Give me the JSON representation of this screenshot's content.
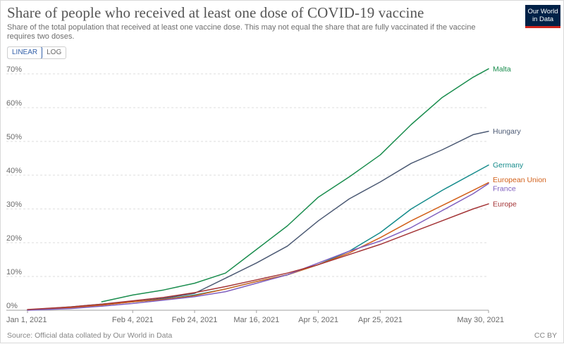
{
  "header": {
    "title": "Share of people who received at least one dose of COVID-19 vaccine",
    "subtitle": "Share of the total population that received at least one vaccine dose. This may not equal the share that are fully vaccinated if the vaccine requires two doses.",
    "logo_line1": "Our World",
    "logo_line2": "in Data"
  },
  "controls": {
    "linear_label": "LINEAR",
    "log_label": "LOG",
    "selected": "LINEAR"
  },
  "footer": {
    "source": "Source: Official data collated by Our World in Data",
    "license": "CC BY"
  },
  "chart_data": {
    "type": "line",
    "x_ticks": [
      "Jan 1, 2021",
      "Feb 4, 2021",
      "Feb 24, 2021",
      "Mar 16, 2021",
      "Apr 5, 2021",
      "Apr 25, 2021",
      "May 30, 2021"
    ],
    "xlim": [
      "2021-01-01",
      "2021-05-30"
    ],
    "y_ticks": [
      "0%",
      "10%",
      "20%",
      "30%",
      "40%",
      "50%",
      "60%",
      "70%"
    ],
    "ylim": [
      0,
      70
    ],
    "grid": "horizontal dashed",
    "legend": "inline labels at right end of lines",
    "series": [
      {
        "name": "Malta",
        "color": "#1a8d4e",
        "points": [
          [
            "2021-01-25",
            2.5
          ],
          [
            "2021-02-04",
            4.5
          ],
          [
            "2021-02-14",
            6.0
          ],
          [
            "2021-02-24",
            8.0
          ],
          [
            "2021-03-06",
            11.0
          ],
          [
            "2021-03-16",
            18.0
          ],
          [
            "2021-03-26",
            25.0
          ],
          [
            "2021-04-05",
            33.5
          ],
          [
            "2021-04-15",
            39.5
          ],
          [
            "2021-04-25",
            46.0
          ],
          [
            "2021-05-05",
            55.0
          ],
          [
            "2021-05-15",
            63.0
          ],
          [
            "2021-05-25",
            69.0
          ],
          [
            "2021-05-30",
            71.5
          ]
        ]
      },
      {
        "name": "Hungary",
        "color": "#4c5a74",
        "points": [
          [
            "2021-01-01",
            0.1
          ],
          [
            "2021-01-15",
            0.8
          ],
          [
            "2021-01-25",
            1.5
          ],
          [
            "2021-02-04",
            2.5
          ],
          [
            "2021-02-14",
            3.5
          ],
          [
            "2021-02-24",
            5.0
          ],
          [
            "2021-03-06",
            9.5
          ],
          [
            "2021-03-16",
            14.0
          ],
          [
            "2021-03-26",
            19.0
          ],
          [
            "2021-04-05",
            26.5
          ],
          [
            "2021-04-15",
            33.0
          ],
          [
            "2021-04-25",
            38.0
          ],
          [
            "2021-05-05",
            43.5
          ],
          [
            "2021-05-15",
            47.5
          ],
          [
            "2021-05-25",
            52.0
          ],
          [
            "2021-05-30",
            53.0
          ]
        ]
      },
      {
        "name": "Germany",
        "color": "#148b8b",
        "points": [
          [
            "2021-01-01",
            0.1
          ],
          [
            "2021-01-15",
            1.0
          ],
          [
            "2021-01-25",
            1.8
          ],
          [
            "2021-02-04",
            2.5
          ],
          [
            "2021-02-14",
            3.2
          ],
          [
            "2021-02-24",
            4.5
          ],
          [
            "2021-03-06",
            6.3
          ],
          [
            "2021-03-16",
            8.5
          ],
          [
            "2021-03-26",
            10.5
          ],
          [
            "2021-04-05",
            13.5
          ],
          [
            "2021-04-15",
            17.5
          ],
          [
            "2021-04-25",
            23.0
          ],
          [
            "2021-05-05",
            30.0
          ],
          [
            "2021-05-15",
            35.5
          ],
          [
            "2021-05-25",
            40.5
          ],
          [
            "2021-05-30",
            43.0
          ]
        ]
      },
      {
        "name": "European Union",
        "color": "#d2601a",
        "points": [
          [
            "2021-01-01",
            0.1
          ],
          [
            "2021-01-15",
            0.8
          ],
          [
            "2021-01-25",
            1.5
          ],
          [
            "2021-02-04",
            2.5
          ],
          [
            "2021-02-14",
            3.2
          ],
          [
            "2021-02-24",
            4.3
          ],
          [
            "2021-03-06",
            6.3
          ],
          [
            "2021-03-16",
            8.5
          ],
          [
            "2021-03-26",
            10.5
          ],
          [
            "2021-04-05",
            13.5
          ],
          [
            "2021-04-15",
            17.0
          ],
          [
            "2021-04-25",
            21.5
          ],
          [
            "2021-05-05",
            26.5
          ],
          [
            "2021-05-15",
            31.0
          ],
          [
            "2021-05-25",
            35.5
          ],
          [
            "2021-05-30",
            37.8
          ]
        ]
      },
      {
        "name": "France",
        "color": "#7f5fbf",
        "points": [
          [
            "2021-01-01",
            0.0
          ],
          [
            "2021-01-15",
            0.5
          ],
          [
            "2021-01-25",
            1.2
          ],
          [
            "2021-02-04",
            2.0
          ],
          [
            "2021-02-14",
            3.0
          ],
          [
            "2021-02-24",
            4.0
          ],
          [
            "2021-03-06",
            5.5
          ],
          [
            "2021-03-16",
            8.0
          ],
          [
            "2021-03-26",
            10.5
          ],
          [
            "2021-04-05",
            14.0
          ],
          [
            "2021-04-15",
            17.5
          ],
          [
            "2021-04-25",
            20.5
          ],
          [
            "2021-05-05",
            24.5
          ],
          [
            "2021-05-15",
            29.5
          ],
          [
            "2021-05-25",
            34.5
          ],
          [
            "2021-05-30",
            37.5
          ]
        ]
      },
      {
        "name": "Europe",
        "color": "#a43537",
        "points": [
          [
            "2021-01-01",
            0.2
          ],
          [
            "2021-01-15",
            1.0
          ],
          [
            "2021-01-25",
            1.8
          ],
          [
            "2021-02-04",
            2.8
          ],
          [
            "2021-02-14",
            3.8
          ],
          [
            "2021-02-24",
            5.2
          ],
          [
            "2021-03-06",
            7.0
          ],
          [
            "2021-03-16",
            9.0
          ],
          [
            "2021-03-26",
            11.0
          ],
          [
            "2021-04-05",
            13.5
          ],
          [
            "2021-04-15",
            16.5
          ],
          [
            "2021-04-25",
            19.5
          ],
          [
            "2021-05-05",
            23.0
          ],
          [
            "2021-05-15",
            26.5
          ],
          [
            "2021-05-25",
            30.0
          ],
          [
            "2021-05-30",
            31.5
          ]
        ]
      }
    ]
  }
}
